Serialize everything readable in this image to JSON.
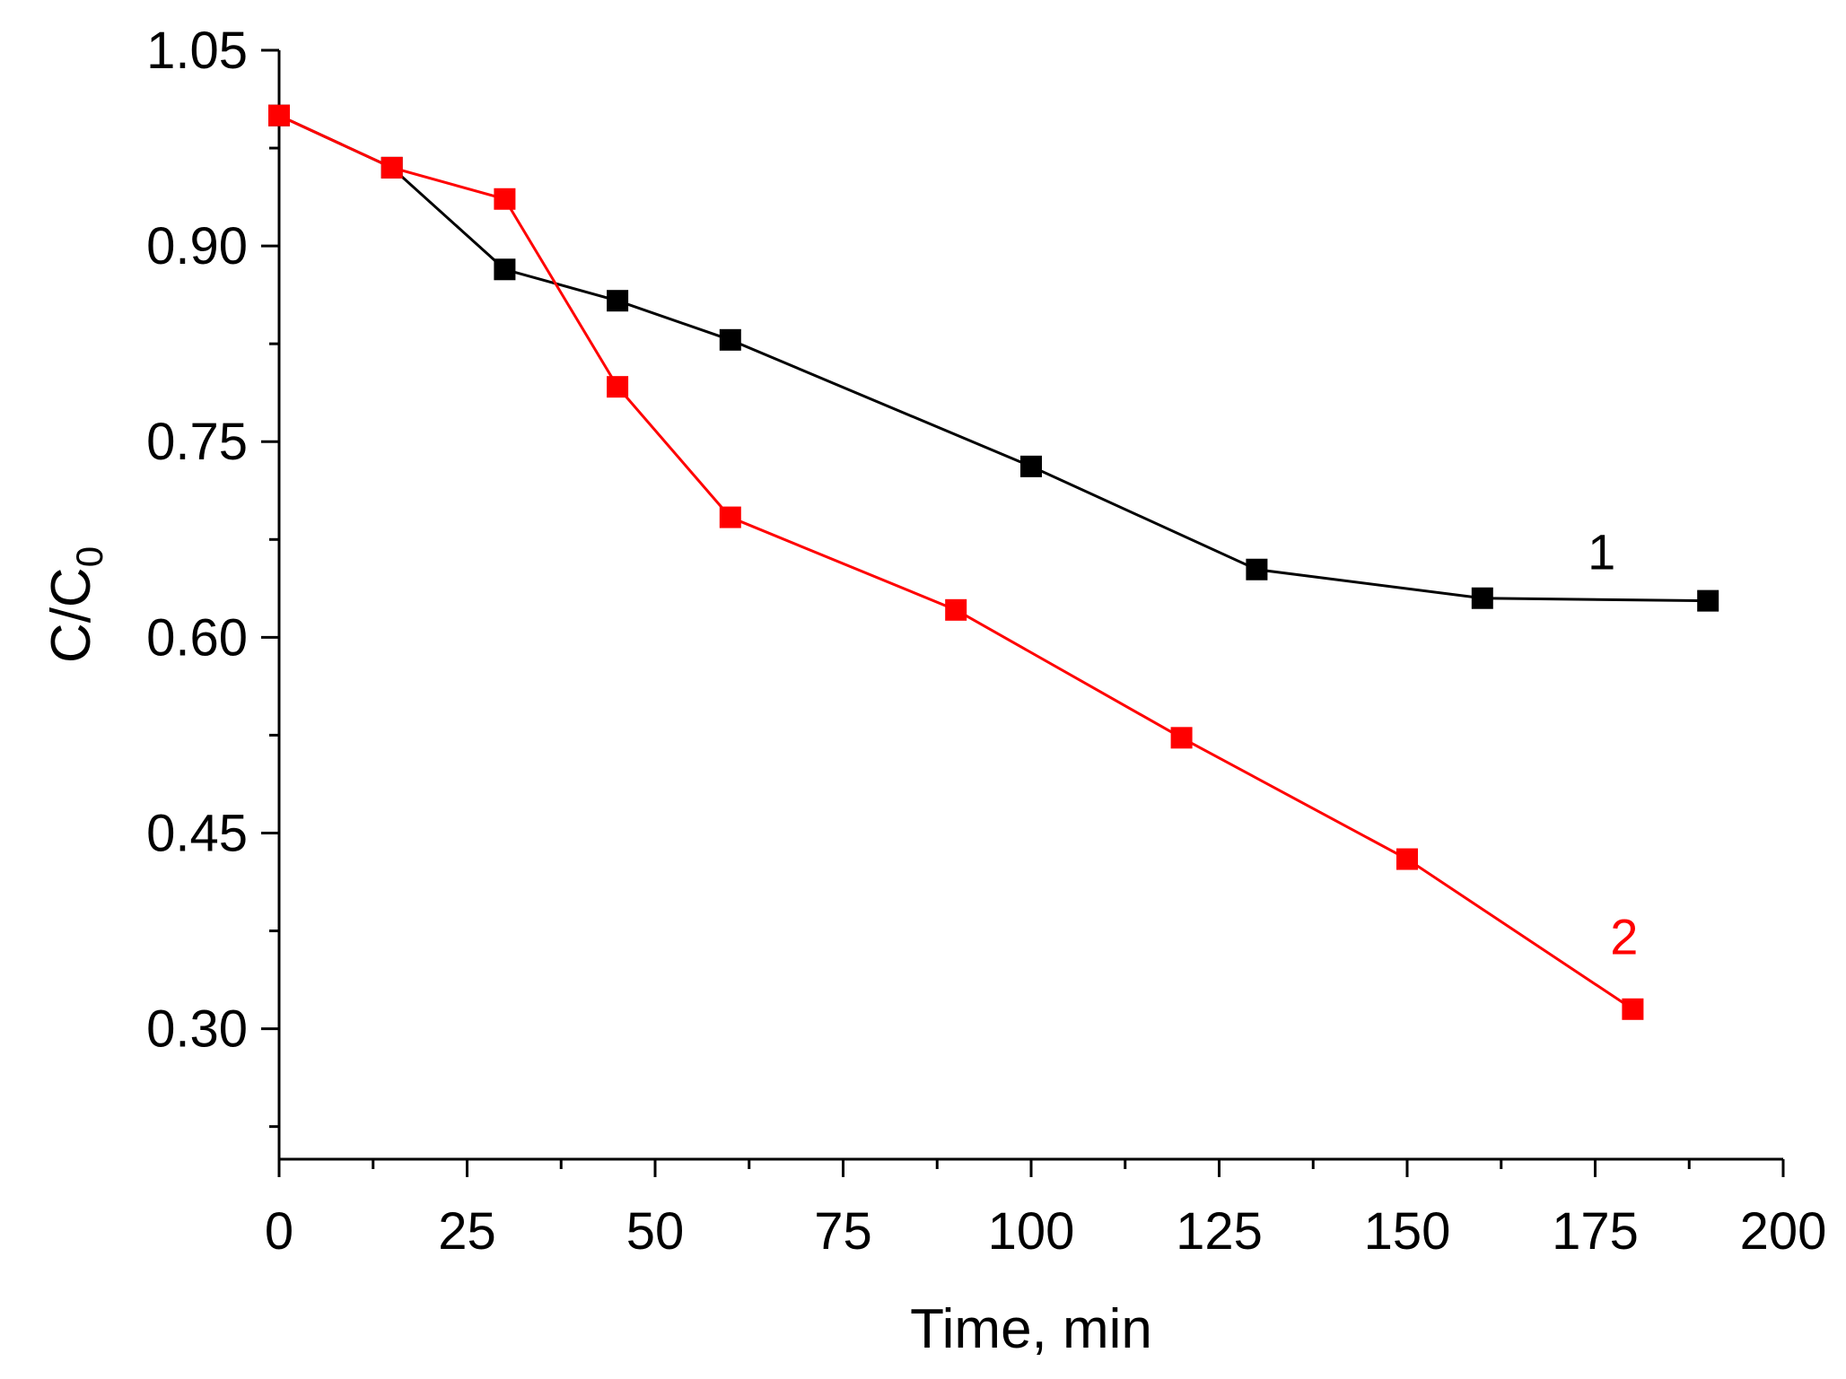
{
  "chart_data": {
    "type": "line",
    "title": "",
    "xlabel": "Time, min",
    "ylabel_main": "C/C",
    "ylabel_sub": "0",
    "xlim": [
      0,
      200
    ],
    "ylim": [
      0.2,
      1.05
    ],
    "x_ticks": [
      0,
      25,
      50,
      75,
      100,
      125,
      150,
      175,
      200
    ],
    "x_tick_labels": [
      "0",
      "25",
      "50",
      "75",
      "100",
      "125",
      "150",
      "175",
      "200"
    ],
    "y_ticks": [
      0.3,
      0.45,
      0.6,
      0.75,
      0.9,
      1.05
    ],
    "y_tick_labels": [
      "0.30",
      "0.45",
      "0.60",
      "0.75",
      "0.90",
      "1.05"
    ],
    "x_minor_ticks": [
      12.5,
      37.5,
      62.5,
      87.5,
      112.5,
      137.5,
      162.5,
      187.5
    ],
    "y_minor_ticks": [
      0.225,
      0.375,
      0.525,
      0.675,
      0.825,
      0.975
    ],
    "grid": false,
    "series": [
      {
        "name": "1",
        "label": "1",
        "color": "#000000",
        "x": [
          0,
          15,
          30,
          45,
          60,
          100,
          130,
          160,
          190
        ],
        "y": [
          1.0,
          0.96,
          0.882,
          0.858,
          0.828,
          0.731,
          0.652,
          0.63,
          0.628
        ],
        "label_at": [
          174,
          0.652
        ]
      },
      {
        "name": "2",
        "label": "2",
        "color": "#ff0000",
        "x": [
          0,
          15,
          30,
          45,
          60,
          90,
          120,
          150,
          180
        ],
        "y": [
          1.0,
          0.96,
          0.936,
          0.792,
          0.692,
          0.621,
          0.523,
          0.43,
          0.315
        ],
        "label_at": [
          177,
          0.357
        ]
      }
    ]
  }
}
